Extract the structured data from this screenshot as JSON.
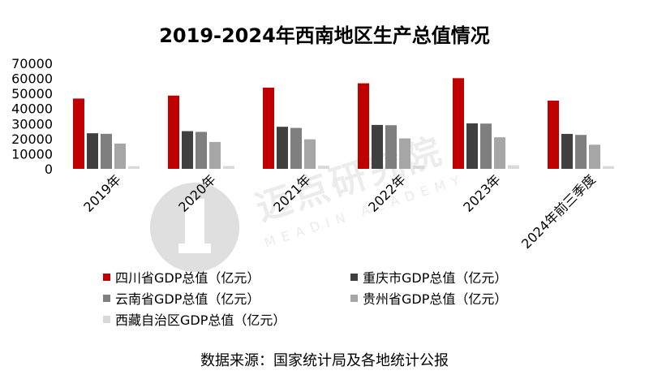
{
  "title": "2019-2024年西南地区生产总值情况",
  "source": "数据来源：国家统计局及各地统计公报",
  "watermark": {
    "main": "迈点研究院",
    "sub": "MEADIN ACADEMY"
  },
  "chart_data": {
    "type": "bar",
    "title": "2019-2024年西南地区生产总值情况",
    "categories": [
      "2019年",
      "2020年",
      "2021年",
      "2022年",
      "2023年",
      "2024年前三季度"
    ],
    "ylim": [
      0,
      70000
    ],
    "yticks": [
      0,
      10000,
      20000,
      30000,
      40000,
      50000,
      60000,
      70000
    ],
    "grid": false,
    "legend_position": "bottom",
    "series": [
      {
        "name": "四川省GDP总值（亿元）",
        "color": "#C00000",
        "values": [
          46616,
          48599,
          53851,
          56750,
          60133,
          45264
        ]
      },
      {
        "name": "重庆市GDP总值（亿元）",
        "color": "#404040",
        "values": [
          23606,
          25003,
          27894,
          29129,
          30146,
          23179
        ]
      },
      {
        "name": "云南省GDP总值（亿元）",
        "color": "#7F7F7F",
        "values": [
          23224,
          24522,
          27147,
          28954,
          30021,
          22500
        ]
      },
      {
        "name": "贵州省GDP总值（亿元）",
        "color": "#A6A6A6",
        "values": [
          16769,
          17827,
          19586,
          20165,
          20913,
          16000
        ]
      },
      {
        "name": "西藏自治区GDP总值（亿元）",
        "color": "#D9D9D9",
        "values": [
          1698,
          1903,
          2080,
          2133,
          2393,
          1800
        ]
      }
    ]
  }
}
